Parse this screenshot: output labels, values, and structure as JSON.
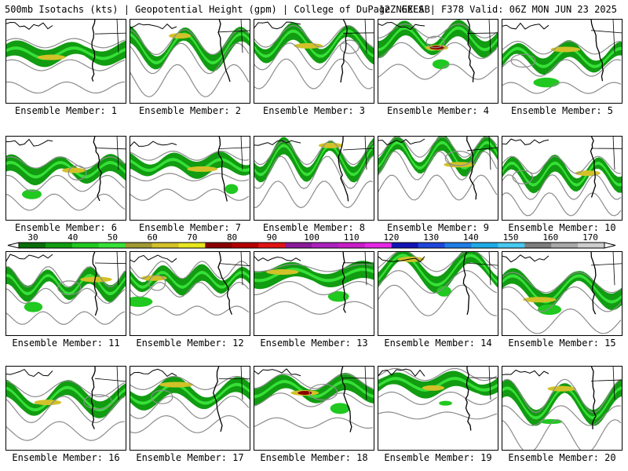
{
  "header": {
    "left": "500mb Isotachs (kts) | Geopotential Height (gpm) | College of DuPage NEXLAB",
    "right": "12Z GEFS | F378 Valid: 06Z MON JUN 23 2025"
  },
  "caption_prefix": "Ensemble Member: ",
  "members": [
    {
      "label": "Ensemble Member: 1",
      "id": 1
    },
    {
      "label": "Ensemble Member: 2",
      "id": 2
    },
    {
      "label": "Ensemble Member: 3",
      "id": 3
    },
    {
      "label": "Ensemble Member: 4",
      "id": 4
    },
    {
      "label": "Ensemble Member: 5",
      "id": 5
    },
    {
      "label": "Ensemble Member: 6",
      "id": 6
    },
    {
      "label": "Ensemble Member: 7",
      "id": 7
    },
    {
      "label": "Ensemble Member: 8",
      "id": 8
    },
    {
      "label": "Ensemble Member: 9",
      "id": 9
    },
    {
      "label": "Ensemble Member: 10",
      "id": 10
    },
    {
      "label": "Ensemble Member: 11",
      "id": 11
    },
    {
      "label": "Ensemble Member: 12",
      "id": 12
    },
    {
      "label": "Ensemble Member: 13",
      "id": 13
    },
    {
      "label": "Ensemble Member: 14",
      "id": 14
    },
    {
      "label": "Ensemble Member: 15",
      "id": 15
    },
    {
      "label": "Ensemble Member: 16",
      "id": 16
    },
    {
      "label": "Ensemble Member: 17",
      "id": 17
    },
    {
      "label": "Ensemble Member: 18",
      "id": 18
    },
    {
      "label": "Ensemble Member: 19",
      "id": 19
    },
    {
      "label": "Ensemble Member: 20",
      "id": 20
    }
  ],
  "colorbar": {
    "labels": [
      "30",
      "40",
      "50",
      "60",
      "70",
      "80",
      "90",
      "100",
      "110",
      "120",
      "130",
      "140",
      "150",
      "160",
      "170"
    ],
    "colors": [
      "#0a6e0a",
      "#119c11",
      "#20c820",
      "#37e037",
      "#a09a32",
      "#d2c128",
      "#e6e61e",
      "#8b0000",
      "#b40000",
      "#e01414",
      "#8a1a9a",
      "#aa22bb",
      "#c81ec8",
      "#e628e6",
      "#1414b4",
      "#1e46dc",
      "#1e7de6",
      "#1eaae6",
      "#46c8f0",
      "#7d7d7d",
      "#a8a8a8",
      "#cccccc"
    ]
  }
}
